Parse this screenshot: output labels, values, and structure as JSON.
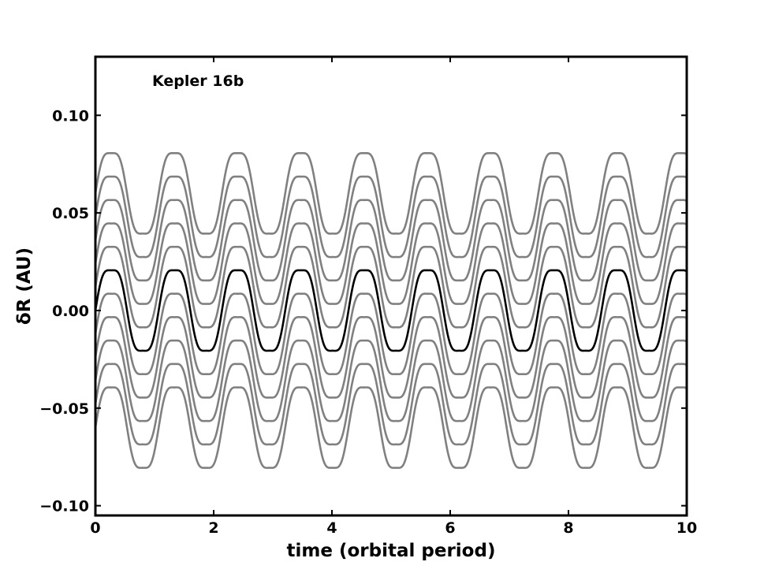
{
  "chart_data": {
    "type": "line",
    "annotation": "Kepler 16b",
    "xlabel": "time (orbital period)",
    "ylabel": "δR (AU)",
    "xlim": [
      0,
      10
    ],
    "ylim": [
      -0.105,
      0.13
    ],
    "xticks": [
      0,
      2,
      4,
      6,
      8,
      10
    ],
    "xtick_labels": [
      "0",
      "2",
      "4",
      "6",
      "8",
      "10"
    ],
    "yticks": [
      -0.1,
      -0.05,
      0.0,
      0.05,
      0.1
    ],
    "ytick_labels": [
      "−0.10",
      "−0.05",
      "0.00",
      "0.05",
      "0.10"
    ],
    "grid": false,
    "legend": "none",
    "colors": {
      "highlight": "#000000",
      "others": "#808080"
    },
    "period": 1.07,
    "x": [
      0,
      0.25,
      0.5,
      0.75,
      1.0,
      1.25,
      1.5,
      1.75,
      2.0,
      2.25,
      2.5,
      2.75,
      3.0,
      3.25,
      3.5,
      3.75,
      4.0,
      4.25,
      4.5,
      4.75,
      5.0,
      5.25,
      5.5,
      5.75,
      6.0,
      6.25,
      6.5,
      6.75,
      7.0,
      7.25,
      7.5,
      7.75,
      8.0,
      8.25,
      8.5,
      8.75,
      9.0,
      9.25,
      9.5,
      9.75,
      10.0
    ],
    "series": [
      {
        "offset": 0.06,
        "highlight": false,
        "amplitude": 0.026
      },
      {
        "offset": 0.048,
        "highlight": false,
        "amplitude": 0.026
      },
      {
        "offset": 0.036,
        "highlight": false,
        "amplitude": 0.026
      },
      {
        "offset": 0.024,
        "highlight": false,
        "amplitude": 0.026
      },
      {
        "offset": 0.012,
        "highlight": false,
        "amplitude": 0.026
      },
      {
        "offset": 0.0,
        "highlight": true,
        "amplitude": 0.026
      },
      {
        "offset": -0.012,
        "highlight": false,
        "amplitude": 0.026
      },
      {
        "offset": -0.024,
        "highlight": false,
        "amplitude": 0.026
      },
      {
        "offset": -0.036,
        "highlight": false,
        "amplitude": 0.026
      },
      {
        "offset": -0.048,
        "highlight": false,
        "amplitude": 0.026
      },
      {
        "offset": -0.06,
        "highlight": false,
        "amplitude": 0.026
      }
    ]
  }
}
